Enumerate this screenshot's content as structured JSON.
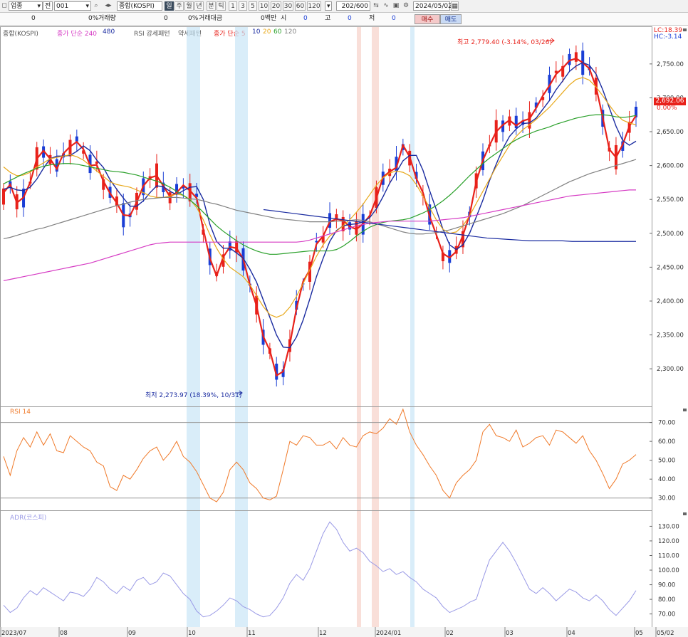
{
  "toolbar": {
    "market_type": "업종",
    "scope": "전",
    "code": "001",
    "name": "종합(KOSPI)",
    "period_day": "일",
    "period_week": "주",
    "period_month": "월",
    "period_year": "년",
    "period_min": "분",
    "period_tick": "틱",
    "interval_buttons": [
      "1",
      "3",
      "5",
      "10",
      "20",
      "30",
      "60",
      "120"
    ],
    "count": "202",
    "count_total": "/600",
    "date": "2024/05/02"
  },
  "infobar": {
    "val1": "0",
    "pct1": "0%",
    "volume_label": "거래량",
    "val2": "0",
    "pct2": "0%",
    "amount_label": "거래대금",
    "amount_val": "0백만",
    "open_label": "시",
    "open_val": "0",
    "high_label": "고",
    "high_val": "0",
    "low_label": "저",
    "low_val": "0",
    "buy": "매수",
    "sell": "매도"
  },
  "legend": {
    "main_name": "종합(KOSPI)",
    "long_ma_label": "종가 단순 240",
    "long_ma_extra": "480",
    "rsi_pattern": "RSI 강세패턴",
    "weak_pattern": "약세패턴",
    "short_ma_label": "종가 단순 5",
    "ma10": "10",
    "ma20": "20",
    "ma60": "60",
    "ma120": "120"
  },
  "header_right": {
    "lc": "LC:18.39",
    "hc": "HC:-3.14"
  },
  "annotations": {
    "high": "최고 2,779.40 (-3.14%, 03/26)",
    "low": "최저 2,273.97 (18.39%, 10/31)"
  },
  "price_marker": {
    "value": "2,692.06",
    "pct": "0.00%"
  },
  "colors": {
    "up": "#e8211a",
    "down": "#1a3ed6",
    "ma5": "#e8211a",
    "ma10": "#1a2ba0",
    "ma20": "#e8a81a",
    "ma60": "#2aa02a",
    "ma120": "#808080",
    "ma240": "#d63cc4",
    "ma480": "#1a2ba0",
    "rsi": "#f07a2a",
    "adr": "#9a9ae6",
    "buy_bg": "#f4c9c9",
    "sell_bg": "#c9daf4"
  },
  "rsi_label": "RSI 14",
  "adr_label": "ADR(코스피)",
  "chart_data": [
    {
      "type": "candlestick",
      "title": "종합(KOSPI)",
      "x_labels": [
        "2023/07",
        "08",
        "09",
        "10",
        "11",
        "12",
        "2024/01",
        "02",
        "03",
        "04",
        "05",
        "05/02"
      ],
      "y_ticks": [
        "2,750.00",
        "2,700.00",
        "2,650.00",
        "2,600.00",
        "2,550.00",
        "2,500.00",
        "2,450.00",
        "2,400.00",
        "2,350.00",
        "2,300.00"
      ],
      "ylim": [
        2255,
        2795
      ],
      "series": [
        {
          "name": "종가 단순 5",
          "values": [
            2560,
            2572,
            2545,
            2553,
            2575,
            2610,
            2622,
            2610,
            2595,
            2618,
            2628,
            2635,
            2624,
            2600,
            2601,
            2577,
            2559,
            2545,
            2527,
            2526,
            2546,
            2570,
            2582,
            2585,
            2570,
            2554,
            2560,
            2571,
            2563,
            2552,
            2506,
            2463,
            2437,
            2465,
            2480,
            2478,
            2462,
            2424,
            2393,
            2348,
            2327,
            2290,
            2296,
            2336,
            2389,
            2429,
            2446,
            2484,
            2496,
            2517,
            2521,
            2519,
            2510,
            2506,
            2514,
            2526,
            2552,
            2583,
            2591,
            2597,
            2630,
            2613,
            2581,
            2560,
            2525,
            2498,
            2470,
            2464,
            2473,
            2497,
            2527,
            2576,
            2608,
            2630,
            2650,
            2660,
            2667,
            2659,
            2666,
            2669,
            2685,
            2703,
            2718,
            2735,
            2744,
            2755,
            2758,
            2752,
            2743,
            2716,
            2671,
            2624,
            2612,
            2631,
            2658,
            2674
          ]
        },
        {
          "name": "10",
          "values": [
            2565,
            2568,
            2564,
            2563,
            2568,
            2580,
            2596,
            2610,
            2614,
            2614,
            2615,
            2621,
            2629,
            2622,
            2608,
            2597,
            2579,
            2565,
            2552,
            2540,
            2540,
            2548,
            2560,
            2570,
            2569,
            2562,
            2557,
            2563,
            2568,
            2569,
            2550,
            2513,
            2488,
            2478,
            2478,
            2471,
            2463,
            2447,
            2428,
            2402,
            2376,
            2350,
            2332,
            2331,
            2347,
            2372,
            2403,
            2436,
            2463,
            2488,
            2504,
            2511,
            2513,
            2514,
            2517,
            2523,
            2536,
            2554,
            2574,
            2590,
            2607,
            2615,
            2615,
            2593,
            2563,
            2535,
            2506,
            2483,
            2476,
            2483,
            2500,
            2524,
            2549,
            2578,
            2602,
            2625,
            2643,
            2654,
            2662,
            2663,
            2670,
            2683,
            2696,
            2712,
            2725,
            2739,
            2747,
            2752,
            2748,
            2735,
            2712,
            2685,
            2658,
            2637,
            2630,
            2636
          ]
        },
        {
          "name": "20",
          "values": [
            2598,
            2590,
            2585,
            2586,
            2590,
            2598,
            2604,
            2610,
            2612,
            2614,
            2616,
            2613,
            2608,
            2600,
            2592,
            2584,
            2576,
            2572,
            2570,
            2568,
            2564,
            2560,
            2555,
            2553,
            2553,
            2555,
            2558,
            2556,
            2550,
            2538,
            2520,
            2498,
            2478,
            2462,
            2450,
            2443,
            2436,
            2424,
            2408,
            2392,
            2380,
            2376,
            2380,
            2391,
            2407,
            2426,
            2446,
            2466,
            2483,
            2496,
            2503,
            2511,
            2520,
            2531,
            2543,
            2557,
            2571,
            2582,
            2589,
            2592,
            2590,
            2585,
            2572,
            2555,
            2538,
            2520,
            2506,
            2500,
            2502,
            2511,
            2526,
            2544,
            2562,
            2580,
            2598,
            2614,
            2630,
            2643,
            2653,
            2660,
            2668,
            2677,
            2686,
            2697,
            2708,
            2719,
            2727,
            2730,
            2726,
            2716,
            2703,
            2689,
            2676,
            2667,
            2663,
            2660
          ]
        },
        {
          "name": "60",
          "values": [
            2573,
            2578,
            2583,
            2588,
            2592,
            2596,
            2599,
            2601,
            2602,
            2603,
            2603,
            2602,
            2600,
            2598,
            2596,
            2594,
            2592,
            2591,
            2590,
            2588,
            2586,
            2583,
            2580,
            2577,
            2573,
            2568,
            2562,
            2556,
            2549,
            2541,
            2531,
            2521,
            2511,
            2503,
            2496,
            2489,
            2483,
            2478,
            2474,
            2471,
            2469,
            2469,
            2470,
            2471,
            2472,
            2473,
            2474,
            2474,
            2474,
            2474,
            2476,
            2481,
            2488,
            2496,
            2503,
            2509,
            2513,
            2516,
            2518,
            2519,
            2520,
            2522,
            2526,
            2530,
            2535,
            2541,
            2548,
            2556,
            2565,
            2575,
            2585,
            2594,
            2603,
            2611,
            2618,
            2625,
            2632,
            2638,
            2643,
            2647,
            2651,
            2654,
            2657,
            2661,
            2664,
            2667,
            2670,
            2672,
            2674,
            2675,
            2675,
            2674,
            2672,
            2671,
            2672,
            2674
          ]
        },
        {
          "name": "120",
          "values": [
            2492,
            2494,
            2497,
            2500,
            2503,
            2506,
            2508,
            2511,
            2514,
            2517,
            2520,
            2523,
            2526,
            2529,
            2532,
            2535,
            2538,
            2541,
            2543,
            2546,
            2548,
            2550,
            2551,
            2552,
            2553,
            2553,
            2553,
            2552,
            2551,
            2550,
            2548,
            2545,
            2543,
            2540,
            2537,
            2534,
            2532,
            2530,
            2528,
            2526,
            2524,
            2522,
            2521,
            2520,
            2519,
            2518,
            2517,
            2517,
            2517,
            2517,
            2518,
            2518,
            2519,
            2520,
            2519,
            2517,
            2514,
            2511,
            2508,
            2505,
            2502,
            2500,
            2499,
            2499,
            2500,
            2501,
            2503,
            2505,
            2508,
            2511,
            2514,
            2517,
            2520,
            2523,
            2526,
            2529,
            2533,
            2537,
            2541,
            2546,
            2551,
            2556,
            2561,
            2566,
            2571,
            2576,
            2580,
            2584,
            2588,
            2591,
            2594,
            2597,
            2600,
            2603,
            2606,
            2609
          ]
        },
        {
          "name": "240",
          "values": [
            2430,
            2432,
            2434,
            2436,
            2438,
            2440,
            2442,
            2444,
            2446,
            2448,
            2450,
            2452,
            2454,
            2456,
            2459,
            2462,
            2465,
            2468,
            2471,
            2474,
            2477,
            2480,
            2483,
            2485,
            2486,
            2487,
            2487,
            2487,
            2487,
            2487,
            2487,
            2487,
            2487,
            2487,
            2487,
            2487,
            2487,
            2487,
            2487,
            2487,
            2487,
            2487,
            2487,
            2487,
            2487,
            2488,
            2490,
            2493,
            2496,
            2499,
            2502,
            2505,
            2508,
            2511,
            2513,
            2515,
            2516,
            2517,
            2518,
            2518,
            2518,
            2518,
            2518,
            2518,
            2518,
            2519,
            2520,
            2521,
            2522,
            2523,
            2525,
            2527,
            2529,
            2531,
            2533,
            2535,
            2537,
            2539,
            2541,
            2543,
            2545,
            2547,
            2549,
            2551,
            2553,
            2555,
            2556,
            2557,
            2558,
            2559,
            2560,
            2561,
            2562,
            2563,
            2564,
            2564
          ]
        },
        {
          "name": "480",
          "values": [
            2535,
            2533,
            2531,
            2529,
            2527,
            2525,
            2523,
            2521,
            2519,
            2517,
            2515,
            2513,
            2511,
            2509,
            2507,
            2505,
            2503,
            2501,
            2499,
            2497,
            2495,
            2493,
            2492,
            2491,
            2490,
            2489,
            2489,
            2489,
            2489,
            2488,
            2488,
            2488,
            2488,
            2488,
            2488,
            2488
          ]
        }
      ]
    },
    {
      "type": "line",
      "title": "RSI 14",
      "y_ticks": [
        "70.00",
        "60.00",
        "50.00",
        "40.00",
        "30.00"
      ],
      "ylim": [
        25,
        77
      ],
      "series": [
        {
          "name": "RSI 14",
          "values": [
            52,
            42,
            55,
            62,
            57,
            65,
            58,
            64,
            55,
            54,
            63,
            60,
            57,
            55,
            49,
            47,
            36,
            34,
            42,
            40,
            45,
            51,
            55,
            57,
            50,
            54,
            60,
            52,
            49,
            44,
            37,
            30,
            28,
            33,
            45,
            49,
            45,
            38,
            35,
            30,
            29,
            31,
            45,
            60,
            58,
            63,
            62,
            58,
            58,
            60,
            56,
            62,
            58,
            57,
            63,
            65,
            64,
            67,
            72,
            69,
            77,
            65,
            58,
            53,
            47,
            42,
            34,
            30,
            38,
            42,
            45,
            50,
            65,
            69,
            63,
            62,
            60,
            66,
            57,
            59,
            62,
            63,
            58,
            66,
            65,
            62,
            59,
            63,
            55,
            50,
            43,
            35,
            40,
            48,
            50,
            53
          ]
        }
      ]
    },
    {
      "type": "line",
      "title": "ADR(코스피)",
      "y_ticks": [
        "130.00",
        "120.00",
        "110.00",
        "100.00",
        "90.00",
        "80.00",
        "70.00"
      ],
      "ylim": [
        63,
        138
      ],
      "series": [
        {
          "name": "ADR(코스피)",
          "values": [
            76,
            71,
            74,
            81,
            86,
            83,
            88,
            85,
            82,
            79,
            85,
            84,
            82,
            87,
            95,
            92,
            87,
            84,
            89,
            86,
            93,
            95,
            90,
            92,
            98,
            96,
            90,
            84,
            80,
            72,
            68,
            69,
            72,
            76,
            81,
            79,
            75,
            73,
            70,
            68,
            69,
            74,
            81,
            91,
            97,
            93,
            101,
            113,
            125,
            133,
            128,
            119,
            113,
            115,
            112,
            106,
            103,
            99,
            101,
            97,
            99,
            95,
            92,
            87,
            84,
            81,
            75,
            71,
            73,
            75,
            78,
            80,
            94,
            107,
            113,
            119,
            113,
            105,
            96,
            87,
            84,
            88,
            84,
            79,
            83,
            87,
            85,
            81,
            79,
            83,
            79,
            73,
            69,
            74,
            79,
            86
          ]
        }
      ]
    }
  ]
}
